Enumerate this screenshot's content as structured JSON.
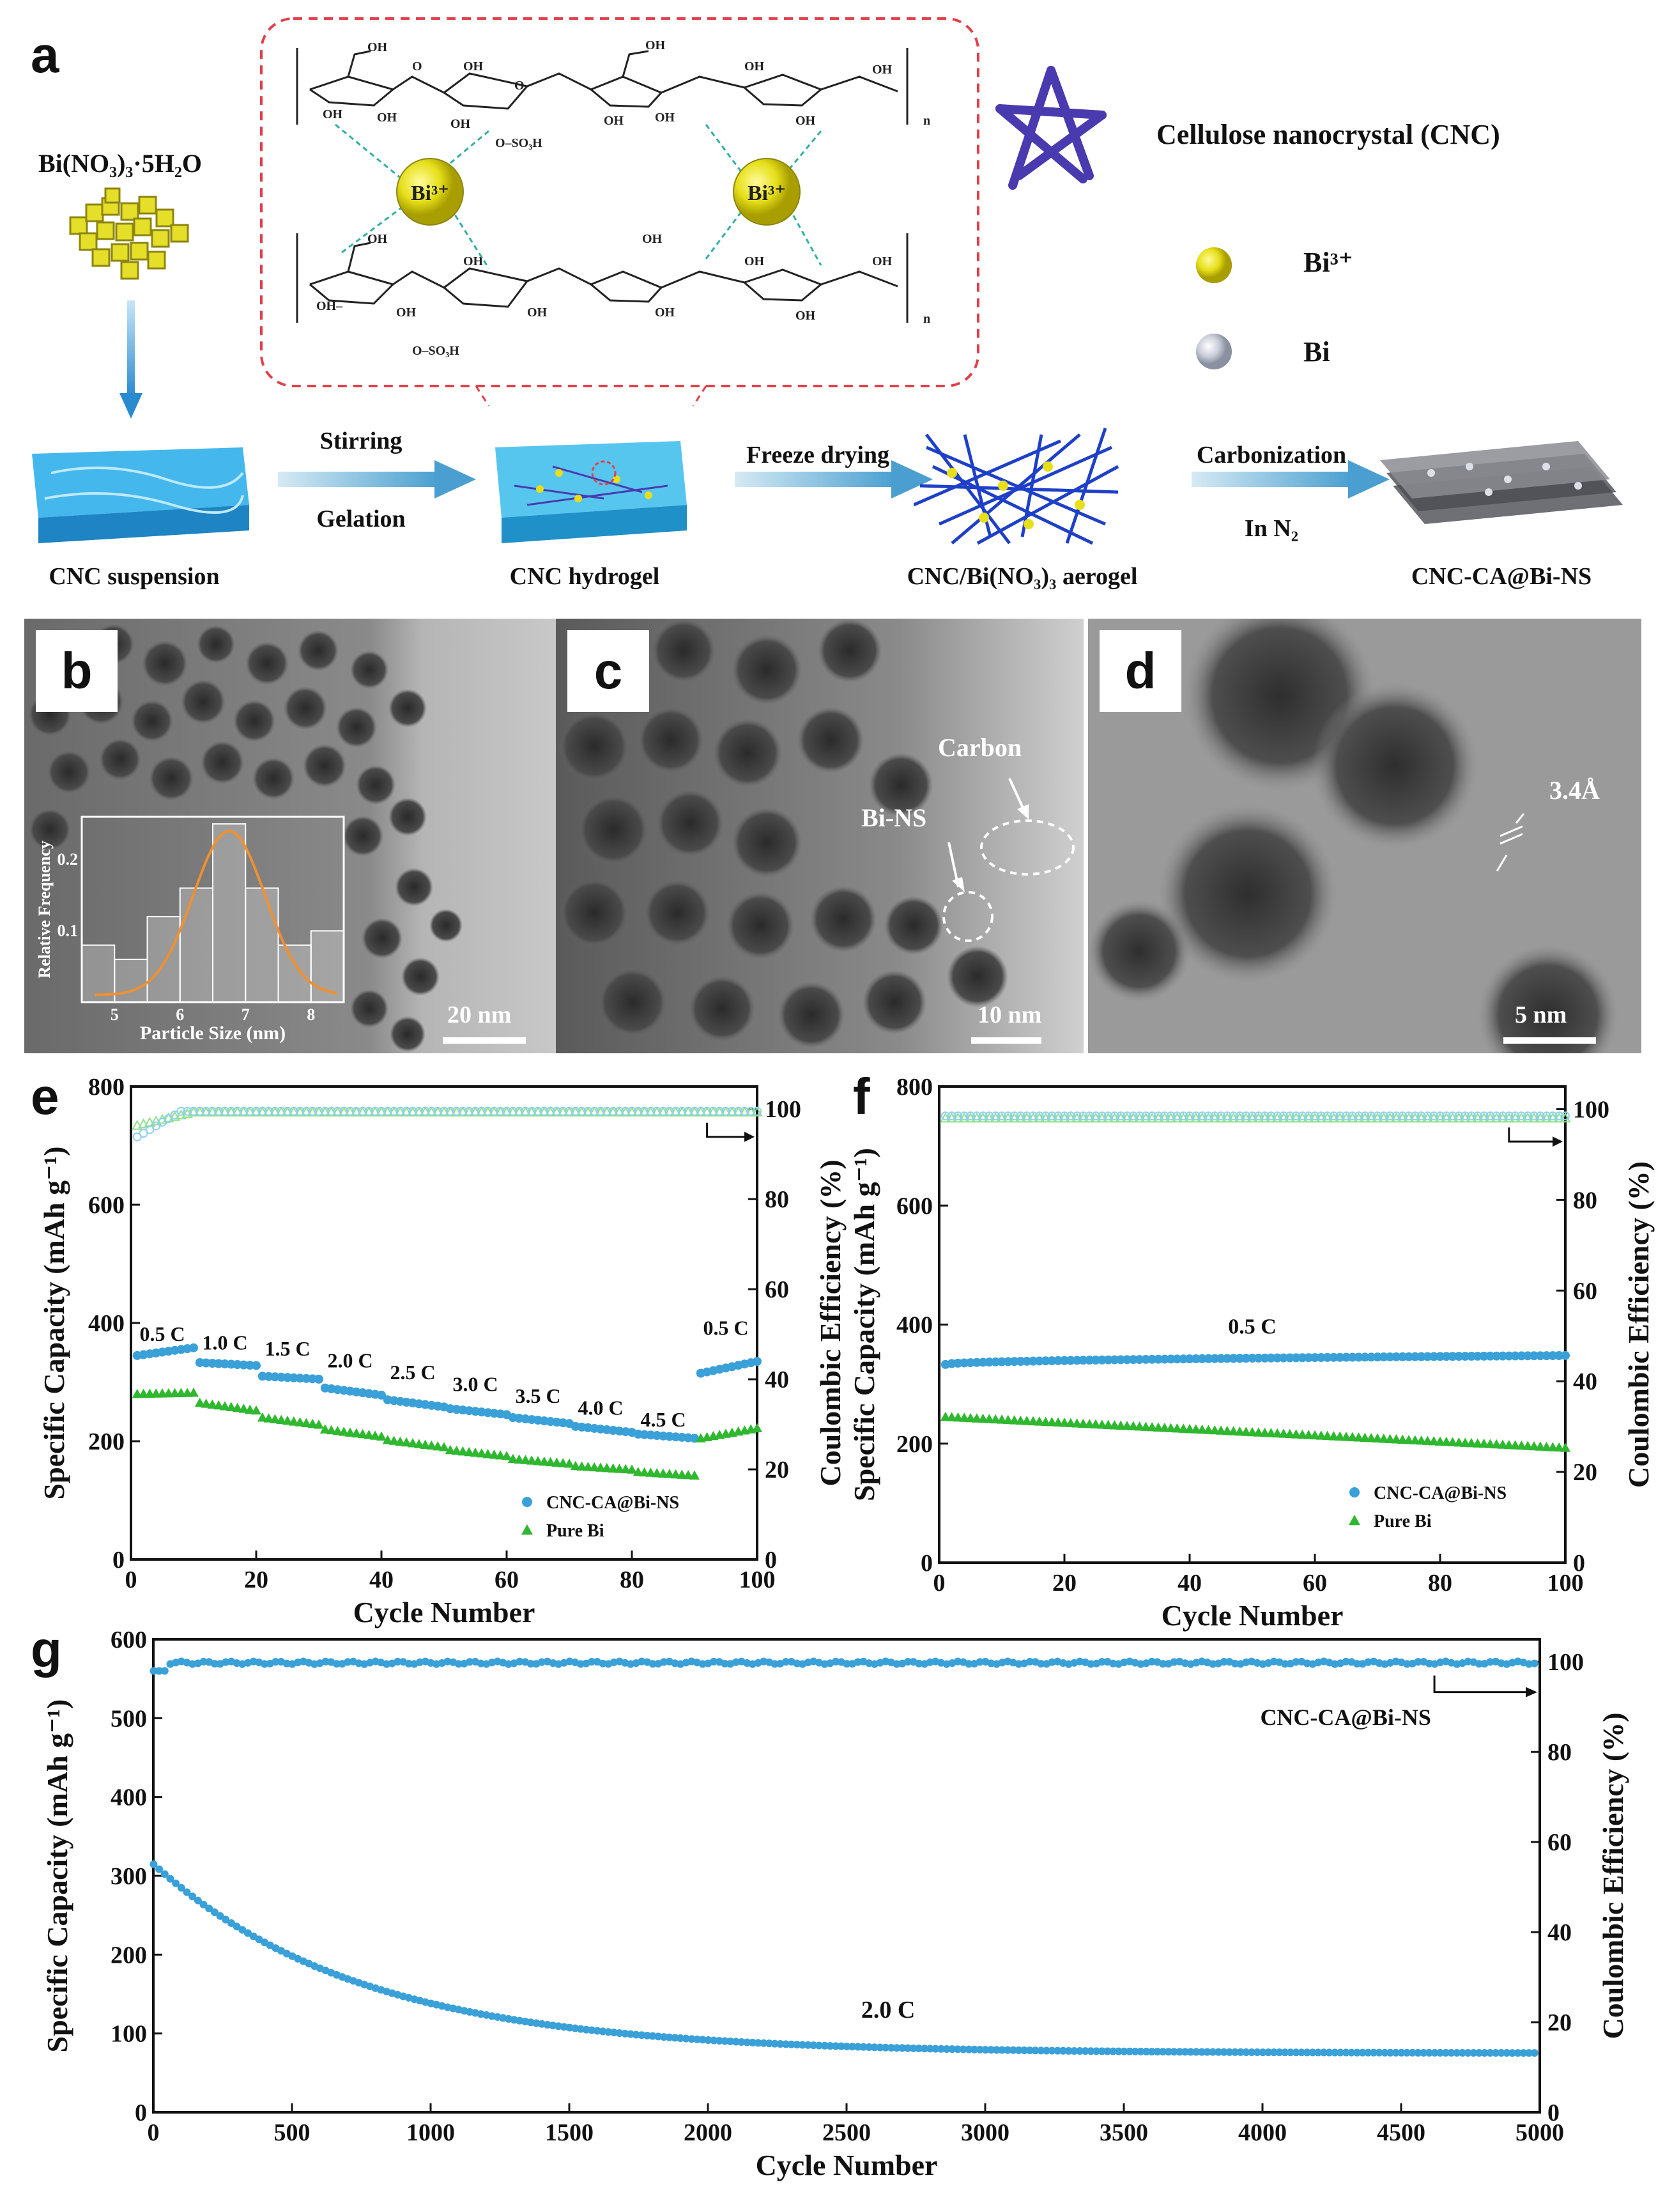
{
  "panel_letters": {
    "a": "a",
    "b": "b",
    "c": "c",
    "d": "d",
    "e": "e",
    "f": "f",
    "g": "g"
  },
  "schematic": {
    "reagent": "Bi(NO₃)₃·5H₂O",
    "legend_cnc": "Cellulose nanocrystal (CNC)",
    "legend_bi3": "Bi³⁺",
    "legend_bi": "Bi",
    "ion_label": "Bi³⁺",
    "chem_labels": {
      "oh": "OH",
      "oh_left": "OH–",
      "so3h": "O–SO₃H",
      "n": "n"
    },
    "step1_top": "Stirring",
    "step1_bottom": "Gelation",
    "step2": "Freeze drying",
    "step3_top": "Carbonization",
    "step3_bottom": "In N₂",
    "stage1": "CNC suspension",
    "stage2": "CNC hydrogel",
    "stage3": "CNC/Bi(NO₃)₃ aerogel",
    "stage4": "CNC-CA@Bi-NS"
  },
  "tem": {
    "b_scale": "20 nm",
    "c_scale": "10 nm",
    "d_scale": "5 nm",
    "c_label_carbon": "Carbon",
    "c_label_bins": "Bi-NS",
    "d_lattice": "3.4Å",
    "inset_xlabel": "Particle Size (nm)",
    "inset_ylabel": "Relative Frequency"
  },
  "colors": {
    "cnc": "#3aa0d8",
    "pure_bi": "#2fb82f",
    "ce_cnc": "#8fd0f0",
    "ce_bi": "#8fe08f",
    "fit": "#f0902f",
    "arrow": "#2a8ad0"
  },
  "chart_data": [
    {
      "id": "b-inset",
      "type": "bar",
      "xlabel": "Particle Size (nm)",
      "ylabel": "Relative Frequency",
      "xlim": [
        4.5,
        8.5
      ],
      "ylim": [
        0,
        0.26
      ],
      "xticks": [
        5,
        6,
        7,
        8
      ],
      "yticks": [
        0.1,
        0.2
      ],
      "bins": [
        4.75,
        5.25,
        5.75,
        6.25,
        6.75,
        7.25,
        7.75,
        8.25
      ],
      "values": [
        0.08,
        0.06,
        0.12,
        0.16,
        0.25,
        0.16,
        0.08,
        0.1
      ],
      "fit": "gaussian",
      "fit_peak": [
        6.75,
        0.23
      ]
    },
    {
      "id": "e",
      "type": "scatter",
      "xlabel": "Cycle Number",
      "ylabel": "Specific Capacity (mAh g⁻¹)",
      "y2label": "Coulombic Efficiency (%)",
      "xlim": [
        0,
        100
      ],
      "ylim": [
        0,
        800
      ],
      "y2lim": [
        0,
        105
      ],
      "xticks": [
        0,
        20,
        40,
        60,
        80,
        100
      ],
      "yticks": [
        0,
        200,
        400,
        600,
        800
      ],
      "y2ticks": [
        0,
        20,
        40,
        60,
        80,
        100
      ],
      "rate_labels": [
        {
          "text": "0.5 C",
          "x": 5,
          "y": 370
        },
        {
          "text": "1.0 C",
          "x": 15,
          "y": 355
        },
        {
          "text": "1.5 C",
          "x": 25,
          "y": 345
        },
        {
          "text": "2.0 C",
          "x": 35,
          "y": 325
        },
        {
          "text": "2.5 C",
          "x": 45,
          "y": 305
        },
        {
          "text": "3.0 C",
          "x": 55,
          "y": 285
        },
        {
          "text": "3.5 C",
          "x": 65,
          "y": 265
        },
        {
          "text": "4.0 C",
          "x": 75,
          "y": 245
        },
        {
          "text": "4.5 C",
          "x": 85,
          "y": 225
        },
        {
          "text": "0.5 C",
          "x": 95,
          "y": 380
        }
      ],
      "series": [
        {
          "name": "CNC-CA@Bi-NS",
          "axis": "left",
          "segments": [
            [
              1,
              10,
              345,
              358
            ],
            [
              11,
              20,
              333,
              328
            ],
            [
              21,
              30,
              310,
              305
            ],
            [
              31,
              40,
              290,
              278
            ],
            [
              41,
              50,
              270,
              258
            ],
            [
              51,
              60,
              255,
              245
            ],
            [
              61,
              70,
              240,
              230
            ],
            [
              71,
              80,
              225,
              215
            ],
            [
              81,
              90,
              212,
              205
            ],
            [
              91,
              100,
              315,
              335
            ]
          ]
        },
        {
          "name": "Pure Bi",
          "axis": "left",
          "segments": [
            [
              1,
              10,
              280,
              282
            ],
            [
              11,
              20,
              265,
              252
            ],
            [
              21,
              30,
              240,
              228
            ],
            [
              31,
              40,
              220,
              208
            ],
            [
              41,
              50,
              202,
              190
            ],
            [
              51,
              60,
              185,
              175
            ],
            [
              61,
              70,
              170,
              162
            ],
            [
              71,
              80,
              158,
              152
            ],
            [
              81,
              90,
              148,
              142
            ],
            [
              91,
              100,
              205,
              222
            ]
          ]
        },
        {
          "name": "CE CNC-CA@Bi-NS",
          "axis": "right",
          "start": 93,
          "plateau": 99.5
        },
        {
          "name": "CE Pure Bi",
          "axis": "right",
          "start": 96,
          "plateau": 99.3
        }
      ],
      "legend": [
        "CNC-CA@Bi-NS",
        "Pure Bi"
      ],
      "legend_position": "bottom-right"
    },
    {
      "id": "f",
      "type": "scatter",
      "xlabel": "Cycle Number",
      "ylabel": "Specific Capacity (mAh g⁻¹)",
      "y2label": "Coulombic Efficiency (%)",
      "xlim": [
        0,
        100
      ],
      "ylim": [
        0,
        800
      ],
      "y2lim": [
        0,
        105
      ],
      "xticks": [
        0,
        20,
        40,
        60,
        80,
        100
      ],
      "yticks": [
        0,
        200,
        400,
        600,
        800
      ],
      "y2ticks": [
        0,
        20,
        40,
        60,
        80,
        100
      ],
      "annotation": "0.5 C",
      "series": [
        {
          "name": "CNC-CA@Bi-NS",
          "axis": "left",
          "start": 333,
          "end": 348
        },
        {
          "name": "Pure Bi",
          "axis": "left",
          "start": 245,
          "end": 193
        },
        {
          "name": "CE CNC-CA@Bi-NS",
          "axis": "right",
          "value": 98.5
        },
        {
          "name": "CE Pure Bi",
          "axis": "right",
          "value": 98.0
        }
      ],
      "legend": [
        "CNC-CA@Bi-NS",
        "Pure Bi"
      ],
      "legend_position": "bottom-right"
    },
    {
      "id": "g",
      "type": "scatter",
      "xlabel": "Cycle Number",
      "ylabel": "Specific Capacity (mAh g⁻¹)",
      "y2label": "Coulombic Efficiency (%)",
      "xlim": [
        0,
        5000
      ],
      "ylim": [
        0,
        600
      ],
      "y2lim": [
        0,
        105
      ],
      "xticks": [
        0,
        500,
        1000,
        1500,
        2000,
        2500,
        3000,
        3500,
        4000,
        4500,
        5000
      ],
      "yticks": [
        0,
        100,
        200,
        300,
        400,
        500,
        600
      ],
      "y2ticks": [
        0,
        20,
        40,
        60,
        80,
        100
      ],
      "annotation": "2.0 C",
      "series_label": "CNC-CA@Bi-NS",
      "series": [
        {
          "name": "Capacity",
          "axis": "left",
          "start": 315,
          "end": 75,
          "decay": "exponential"
        },
        {
          "name": "Coulombic Efficiency",
          "axis": "right",
          "start": 98,
          "plateau": 99.8
        }
      ]
    }
  ]
}
